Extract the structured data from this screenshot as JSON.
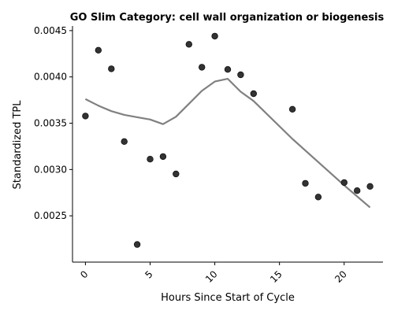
{
  "chart_data": {
    "type": "scatter",
    "title": "GO Slim Category: cell wall organization or biogenesis",
    "xlabel": "Hours Since Start of Cycle",
    "ylabel": "Standardized TPL",
    "xlim": [
      -1,
      23
    ],
    "ylim": [
      0.002,
      0.00455
    ],
    "x_ticks": [
      0,
      5,
      10,
      15,
      20
    ],
    "x_tick_labels": [
      "0",
      "5",
      "10",
      "15",
      "20"
    ],
    "y_ticks": [
      0.0025,
      0.003,
      0.0035,
      0.004,
      0.0045
    ],
    "y_tick_labels": [
      "0.0025",
      "0.0030",
      "0.0035",
      "0.0040",
      "0.0045"
    ],
    "grid": false,
    "series": [
      {
        "type": "scatter",
        "color": "#333333",
        "points": [
          {
            "x": 0,
            "y": 0.003578
          },
          {
            "x": 1,
            "y": 0.004288
          },
          {
            "x": 2,
            "y": 0.004088
          },
          {
            "x": 3,
            "y": 0.003302
          },
          {
            "x": 4,
            "y": 0.00219
          },
          {
            "x": 5,
            "y": 0.003112
          },
          {
            "x": 6,
            "y": 0.00314
          },
          {
            "x": 7,
            "y": 0.002952
          },
          {
            "x": 8,
            "y": 0.004352
          },
          {
            "x": 9,
            "y": 0.004105
          },
          {
            "x": 10,
            "y": 0.00444
          },
          {
            "x": 11,
            "y": 0.004081
          },
          {
            "x": 12,
            "y": 0.004023
          },
          {
            "x": 13,
            "y": 0.003819
          },
          {
            "x": 16,
            "y": 0.003651
          },
          {
            "x": 17,
            "y": 0.002851
          },
          {
            "x": 18,
            "y": 0.002703
          },
          {
            "x": 20,
            "y": 0.002859
          },
          {
            "x": 21,
            "y": 0.002772
          },
          {
            "x": 22,
            "y": 0.002818
          }
        ]
      },
      {
        "type": "line",
        "color": "#808080",
        "points": [
          {
            "x": 0,
            "y": 0.00376
          },
          {
            "x": 1,
            "y": 0.00369
          },
          {
            "x": 2,
            "y": 0.00363
          },
          {
            "x": 3,
            "y": 0.00359
          },
          {
            "x": 4,
            "y": 0.003565
          },
          {
            "x": 5,
            "y": 0.00354
          },
          {
            "x": 6,
            "y": 0.00349
          },
          {
            "x": 7,
            "y": 0.00357
          },
          {
            "x": 8,
            "y": 0.00371
          },
          {
            "x": 9,
            "y": 0.00385
          },
          {
            "x": 10,
            "y": 0.00395
          },
          {
            "x": 11,
            "y": 0.00398
          },
          {
            "x": 12,
            "y": 0.00384
          },
          {
            "x": 13,
            "y": 0.00374
          },
          {
            "x": 16,
            "y": 0.00333
          },
          {
            "x": 20,
            "y": 0.00283
          },
          {
            "x": 22,
            "y": 0.00259
          }
        ]
      }
    ]
  }
}
